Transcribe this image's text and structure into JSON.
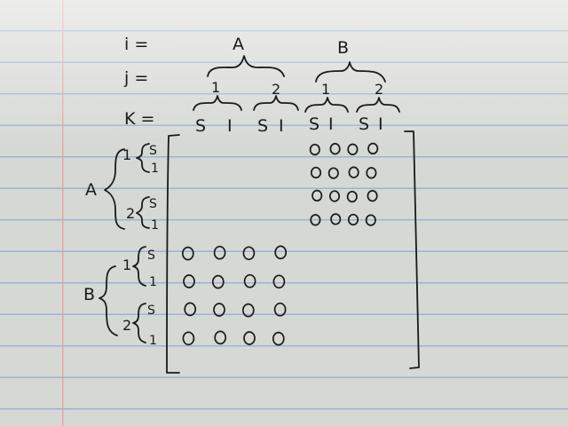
{
  "header_labels": {
    "i": "i =",
    "j": "j =",
    "k": "K ="
  },
  "column_groups": [
    {
      "i": "A",
      "j": [
        {
          "label": "1",
          "k": [
            "S",
            "I"
          ]
        },
        {
          "label": "2",
          "k": [
            "S",
            "I"
          ]
        }
      ]
    },
    {
      "i": "B",
      "j": [
        {
          "label": "1",
          "k": [
            "S",
            "I"
          ]
        },
        {
          "label": "2",
          "k": [
            "S",
            "I"
          ]
        }
      ]
    }
  ],
  "row_groups": [
    {
      "i": "A",
      "j": [
        {
          "label": "1",
          "k": [
            "S",
            "1"
          ]
        },
        {
          "label": "2",
          "k": [
            "S",
            "1"
          ]
        }
      ]
    },
    {
      "i": "B",
      "j": [
        {
          "label": "1",
          "k": [
            "S",
            "1"
          ]
        },
        {
          "label": "2",
          "k": [
            "S",
            "1"
          ]
        }
      ]
    }
  ],
  "matrix": {
    "block_symbol": "0",
    "top_right_block": {
      "rows": 4,
      "cols": 4
    },
    "bottom_left_block": {
      "rows": 4,
      "cols": 4
    }
  },
  "paper": {
    "line_color": "#9fb3cf",
    "margin_color": "#e7a7a6",
    "ink_color": "#1a1a1a"
  }
}
